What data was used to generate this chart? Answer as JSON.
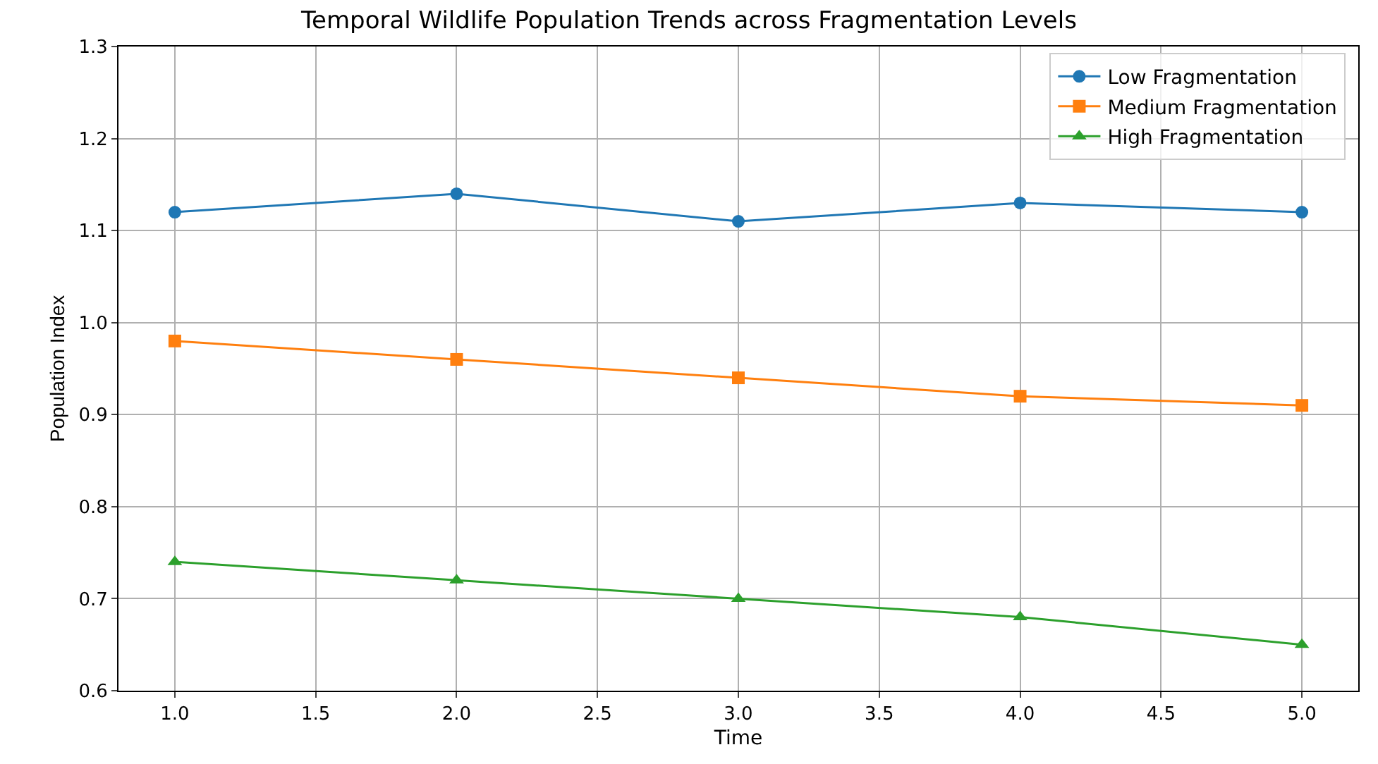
{
  "chart_data": {
    "type": "line",
    "title": "Temporal Wildlife Population Trends across Fragmentation Levels",
    "xlabel": "Time",
    "ylabel": "Population Index",
    "x": [
      1,
      2,
      3,
      4,
      5
    ],
    "series": [
      {
        "name": "Low Fragmentation",
        "color": "#1f77b4",
        "marker": "circle",
        "values": [
          1.12,
          1.14,
          1.11,
          1.13,
          1.12
        ]
      },
      {
        "name": "Medium Fragmentation",
        "color": "#ff7f0e",
        "marker": "square",
        "values": [
          0.98,
          0.96,
          0.94,
          0.92,
          0.91
        ]
      },
      {
        "name": "High Fragmentation",
        "color": "#2ca02c",
        "marker": "triangle",
        "values": [
          0.74,
          0.72,
          0.7,
          0.68,
          0.65
        ]
      }
    ],
    "xlim": [
      0.8,
      5.2
    ],
    "xticks": [
      {
        "value": 1,
        "label": "1.0"
      },
      {
        "value": 1.5,
        "label": "1.5"
      },
      {
        "value": 2,
        "label": "2.0"
      },
      {
        "value": 2.5,
        "label": "2.5"
      },
      {
        "value": 3,
        "label": "3.0"
      },
      {
        "value": 3.5,
        "label": "3.5"
      },
      {
        "value": 4,
        "label": "4.0"
      },
      {
        "value": 4.5,
        "label": "4.5"
      },
      {
        "value": 5,
        "label": "5.0"
      }
    ],
    "ylim": [
      0.6,
      1.3
    ],
    "yticks": [
      {
        "value": 0.6,
        "label": "0.6"
      },
      {
        "value": 0.7,
        "label": "0.7"
      },
      {
        "value": 0.8,
        "label": "0.8"
      },
      {
        "value": 0.9,
        "label": "0.9"
      },
      {
        "value": 1.0,
        "label": "1.0"
      },
      {
        "value": 1.1,
        "label": "1.1"
      },
      {
        "value": 1.2,
        "label": "1.2"
      },
      {
        "value": 1.3,
        "label": "1.3"
      }
    ],
    "grid": true,
    "legend": "top right",
    "line_style": "solid"
  }
}
